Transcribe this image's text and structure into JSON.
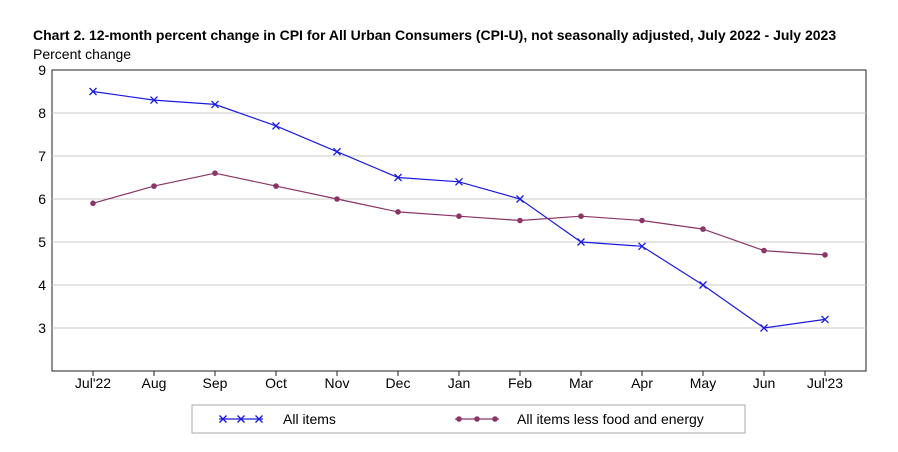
{
  "chart_data": {
    "type": "line",
    "title": "Chart 2. 12-month percent change in CPI for All Urban Consumers (CPI-U), not seasonally adjusted, July 2022 - July 2023",
    "ylabel": "Percent change",
    "xlabel": "",
    "categories": [
      "Jul'22",
      "Aug",
      "Sep",
      "Oct",
      "Nov",
      "Dec",
      "Jan",
      "Feb",
      "Mar",
      "Apr",
      "May",
      "Jun",
      "Jul'23"
    ],
    "ylim": [
      2,
      9
    ],
    "yticks": [
      3,
      4,
      5,
      6,
      7,
      8,
      9
    ],
    "grid": true,
    "legend_position": "bottom",
    "series": [
      {
        "name": "All items",
        "color": "#1a1adf",
        "marker": "x",
        "values": [
          8.5,
          8.3,
          8.2,
          7.7,
          7.1,
          6.5,
          6.4,
          6.0,
          5.0,
          4.9,
          4.0,
          3.0,
          3.2
        ]
      },
      {
        "name": "All items less food and energy",
        "color": "#8b3466",
        "marker": "circle",
        "values": [
          5.9,
          6.3,
          6.6,
          6.3,
          6.0,
          5.7,
          5.6,
          5.5,
          5.6,
          5.5,
          5.3,
          4.8,
          4.7
        ]
      }
    ]
  }
}
